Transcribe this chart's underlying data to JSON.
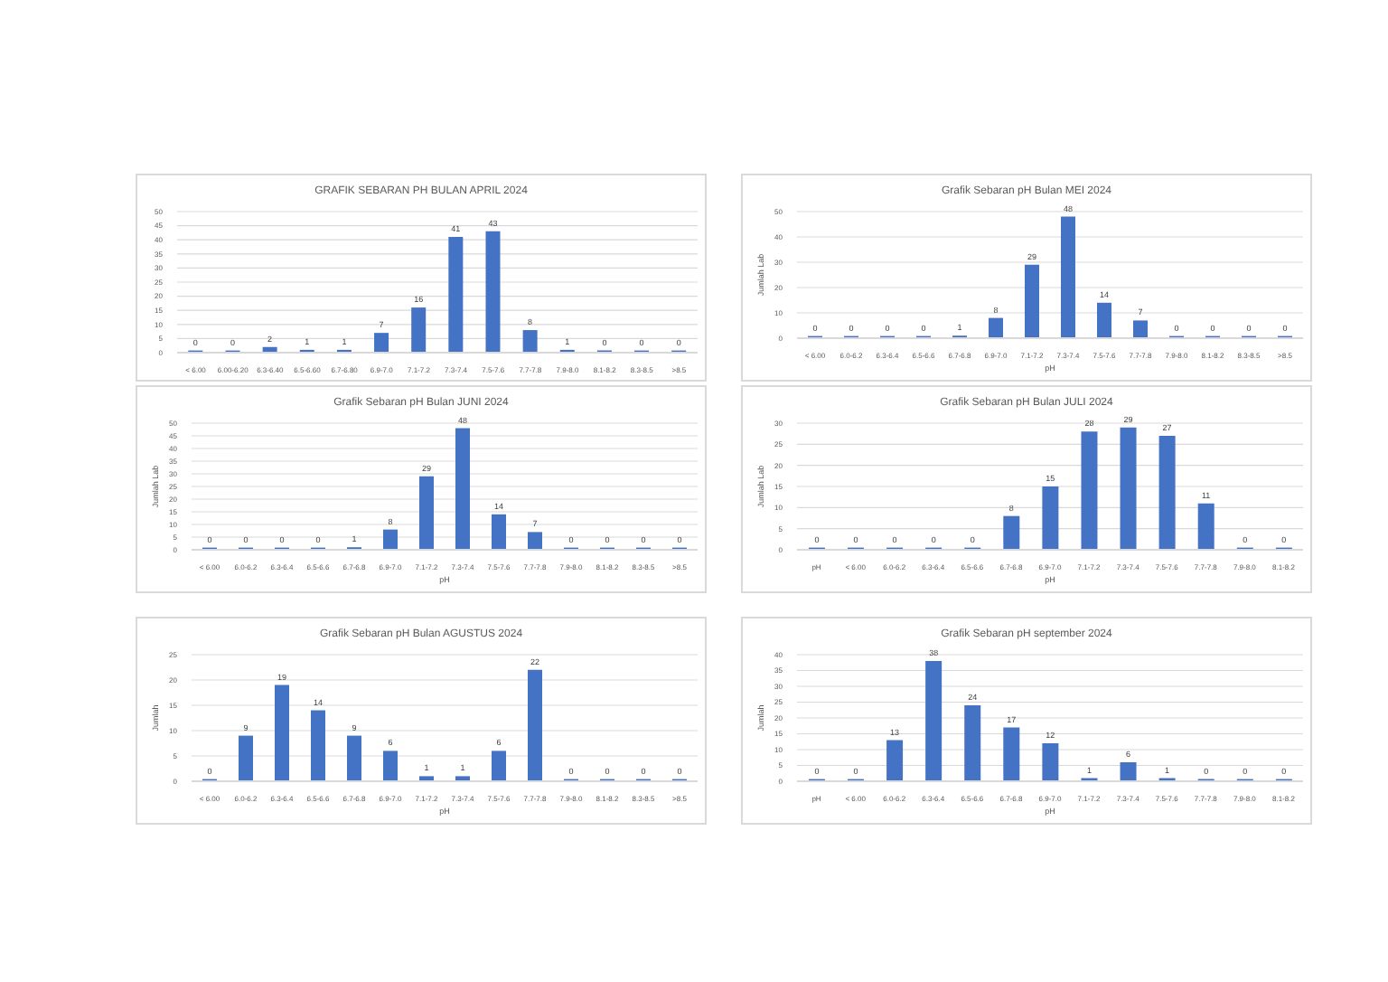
{
  "chart_data": [
    {
      "type": "bar",
      "title": "GRAFIK SEBARAN PH BULAN APRIL 2024",
      "categories": [
        "< 6.00",
        "6.00-6.20",
        "6.3-6.40",
        "6.5-6.60",
        "6.7-6.80",
        "6.9-7.0",
        "7.1-7.2",
        "7.3-7.4",
        "7.5-7.6",
        "7.7-7.8",
        "7.9-8.0",
        "8.1-8.2",
        "8.3-8.5",
        ">8.5"
      ],
      "values": [
        0,
        0,
        2,
        1,
        1,
        7,
        16,
        41,
        43,
        8,
        1,
        0,
        0,
        0
      ],
      "color": "#4472c4",
      "ylim": [
        0,
        50
      ],
      "yticks": [
        0,
        5,
        10,
        15,
        20,
        25,
        30,
        35,
        40,
        45,
        50
      ],
      "grid": "y",
      "data_labels": true
    },
    {
      "type": "bar",
      "title": "Grafik Sebaran pH Bulan MEI 2024",
      "xlabel": "pH",
      "ylabel": "Jumlah Lab",
      "categories": [
        "< 6.00",
        "6.0-6.2",
        "6.3-6.4",
        "6.5-6.6",
        "6.7-6.8",
        "6.9-7.0",
        "7.1-7.2",
        "7.3-7.4",
        "7.5-7.6",
        "7.7-7.8",
        "7.9-8.0",
        "8.1-8.2",
        "8.3-8.5",
        ">8.5"
      ],
      "values": [
        0,
        0,
        0,
        0,
        1,
        8,
        29,
        48,
        14,
        7,
        0,
        0,
        0,
        0
      ],
      "color": "#4472c4",
      "ylim": [
        0,
        50
      ],
      "yticks": [
        0,
        10,
        20,
        30,
        40,
        50
      ],
      "grid": "y",
      "data_labels": true
    },
    {
      "type": "bar",
      "title": "Grafik Sebaran pH Bulan JUNI 2024",
      "xlabel": "pH",
      "ylabel": "Jumlah Lab",
      "categories": [
        "< 6.00",
        "6.0-6.2",
        "6.3-6.4",
        "6.5-6.6",
        "6.7-6.8",
        "6.9-7.0",
        "7.1-7.2",
        "7.3-7.4",
        "7.5-7.6",
        "7.7-7.8",
        "7.9-8.0",
        "8.1-8.2",
        "8.3-8.5",
        ">8.5"
      ],
      "values": [
        0,
        0,
        0,
        0,
        1,
        8,
        29,
        48,
        14,
        7,
        0,
        0,
        0,
        0
      ],
      "color": "#4472c4",
      "ylim": [
        0,
        50
      ],
      "yticks": [
        0,
        5,
        10,
        15,
        20,
        25,
        30,
        35,
        40,
        45,
        50
      ],
      "grid": "y",
      "data_labels": true
    },
    {
      "type": "bar",
      "title": "Grafik Sebaran pH Bulan JULI 2024",
      "xlabel": "pH",
      "ylabel": "Jumlah Lab",
      "categories": [
        "pH",
        "< 6.00",
        "6.0-6.2",
        "6.3-6.4",
        "6.5-6.6",
        "6.7-6.8",
        "6.9-7.0",
        "7.1-7.2",
        "7.3-7.4",
        "7.5-7.6",
        "7.7-7.8",
        "7.9-8.0",
        "8.1-8.2"
      ],
      "values": [
        0,
        0,
        0,
        0,
        0,
        8,
        15,
        28,
        29,
        27,
        11,
        0,
        0
      ],
      "color": "#4472c4",
      "ylim": [
        0,
        30
      ],
      "yticks": [
        0,
        5,
        10,
        15,
        20,
        25,
        30
      ],
      "grid": "y",
      "data_labels": true
    },
    {
      "type": "bar",
      "title": "Grafik Sebaran pH Bulan AGUSTUS 2024",
      "xlabel": "pH",
      "ylabel": "Jumlah",
      "categories": [
        "< 6.00",
        "6.0-6.2",
        "6.3-6.4",
        "6.5-6.6",
        "6.7-6.8",
        "6.9-7.0",
        "7.1-7.2",
        "7.3-7.4",
        "7.5-7.6",
        "7.7-7.8",
        "7.9-8.0",
        "8.1-8.2",
        "8.3-8.5",
        ">8.5"
      ],
      "values": [
        0,
        9,
        19,
        14,
        9,
        6,
        1,
        1,
        6,
        22,
        0,
        0,
        0,
        0
      ],
      "color": "#4472c4",
      "ylim": [
        0,
        25
      ],
      "yticks": [
        0,
        5,
        10,
        15,
        20,
        25
      ],
      "grid": "y",
      "data_labels": true
    },
    {
      "type": "bar",
      "title": "Grafik Sebaran pH september 2024",
      "xlabel": "pH",
      "ylabel": "Jumlah",
      "categories": [
        "pH",
        "< 6.00",
        "6.0-6.2",
        "6.3-6.4",
        "6.5-6.6",
        "6.7-6.8",
        "6.9-7.0",
        "7.1-7.2",
        "7.3-7.4",
        "7.5-7.6",
        "7.7-7.8",
        "7.9-8.0",
        "8.1-8.2"
      ],
      "values": [
        0,
        0,
        13,
        38,
        24,
        17,
        12,
        1,
        6,
        1,
        0,
        0,
        0
      ],
      "color": "#4472c4",
      "ylim": [
        0,
        40
      ],
      "yticks": [
        0,
        5,
        10,
        15,
        20,
        25,
        30,
        35,
        40
      ],
      "grid": "y",
      "data_labels": true
    }
  ]
}
